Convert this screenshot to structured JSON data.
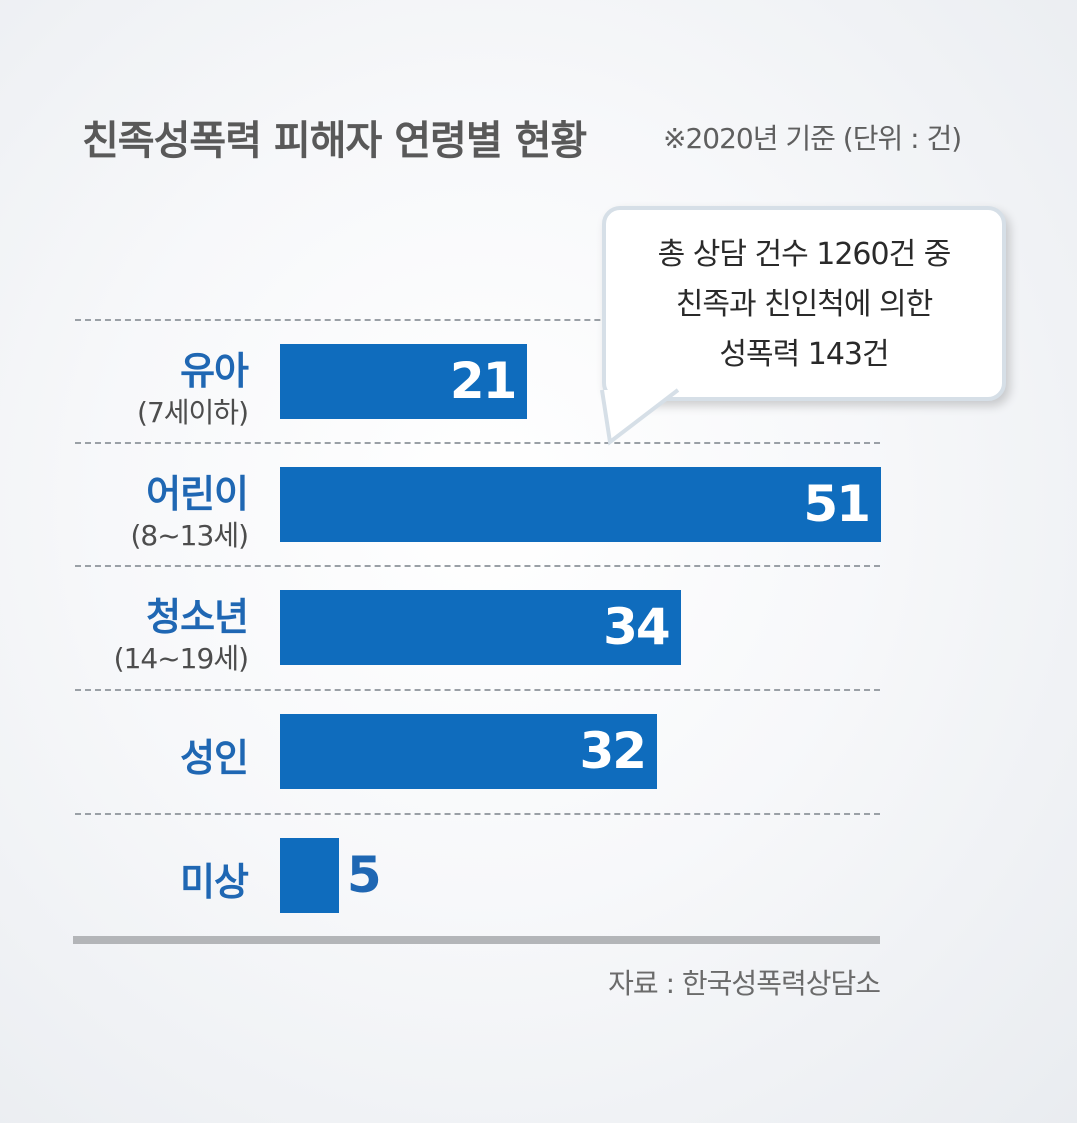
{
  "header": {
    "title": "친족성폭력 피해자 연령별 현황",
    "note": "※2020년 기준 (단위 : 건)"
  },
  "callout": {
    "lines": [
      "총 상담 건수 1260건 중",
      "친족과 친인척에 의한",
      "성폭력 143건"
    ]
  },
  "chart_data": {
    "type": "bar",
    "orientation": "horizontal",
    "title": "친족성폭력 피해자 연령별 현황",
    "unit": "건",
    "categories": [
      {
        "label": "유아",
        "sublabel": "(7세이하)"
      },
      {
        "label": "어린이",
        "sublabel": "(8~13세)"
      },
      {
        "label": "청소년",
        "sublabel": "(14~19세)"
      },
      {
        "label": "성인",
        "sublabel": ""
      },
      {
        "label": "미상",
        "sublabel": ""
      }
    ],
    "values": [
      21,
      51,
      34,
      32,
      5
    ],
    "xlim": [
      0,
      51
    ],
    "bar_color": "#0f6cbd",
    "label_color": "#1f67b3"
  },
  "source": "자료 : 한국성폭력상담소"
}
